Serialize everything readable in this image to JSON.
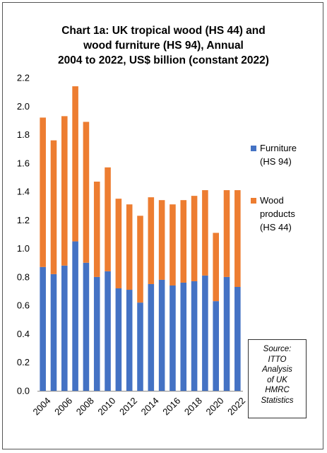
{
  "chart_data": {
    "type": "bar",
    "stacked": true,
    "title_lines": [
      "Chart 1a: UK tropical wood (HS 44) and",
      "wood furniture (HS 94), Annual",
      "2004 to 2022, US$ billion (constant 2022)"
    ],
    "categories": [
      "2004",
      "2005",
      "2006",
      "2007",
      "2008",
      "2009",
      "2010",
      "2011",
      "2012",
      "2013",
      "2014",
      "2015",
      "2016",
      "2017",
      "2018",
      "2019",
      "2020",
      "2021",
      "2022"
    ],
    "x_tick_labels": [
      "2004",
      "2006",
      "2008",
      "2010",
      "2012",
      "2014",
      "2016",
      "2018",
      "2020",
      "2022"
    ],
    "y_tick_labels": [
      "0.0",
      "0.2",
      "0.4",
      "0.6",
      "0.8",
      "1.0",
      "1.2",
      "1.4",
      "1.6",
      "1.8",
      "2.0",
      "2.2"
    ],
    "ylim": [
      0,
      2.2
    ],
    "y_step": 0.2,
    "grid": false,
    "legend_position": "right",
    "series": [
      {
        "name_lines": [
          "Furniture",
          "(HS 94)"
        ],
        "color": "#4472C4",
        "values": [
          0.87,
          0.82,
          0.88,
          1.05,
          0.9,
          0.8,
          0.84,
          0.72,
          0.71,
          0.62,
          0.75,
          0.78,
          0.74,
          0.76,
          0.77,
          0.81,
          0.63,
          0.8,
          0.73
        ]
      },
      {
        "name_lines": [
          "Wood",
          "products",
          "(HS 44)"
        ],
        "color": "#ED7D31",
        "values": [
          1.05,
          0.94,
          1.05,
          1.09,
          0.99,
          0.67,
          0.73,
          0.63,
          0.6,
          0.61,
          0.61,
          0.56,
          0.57,
          0.58,
          0.6,
          0.6,
          0.48,
          0.61,
          0.68
        ]
      }
    ],
    "source_lines": [
      "Source:",
      "ITTO",
      "Analysis",
      "of UK",
      "HMRC",
      "Statistics"
    ]
  }
}
